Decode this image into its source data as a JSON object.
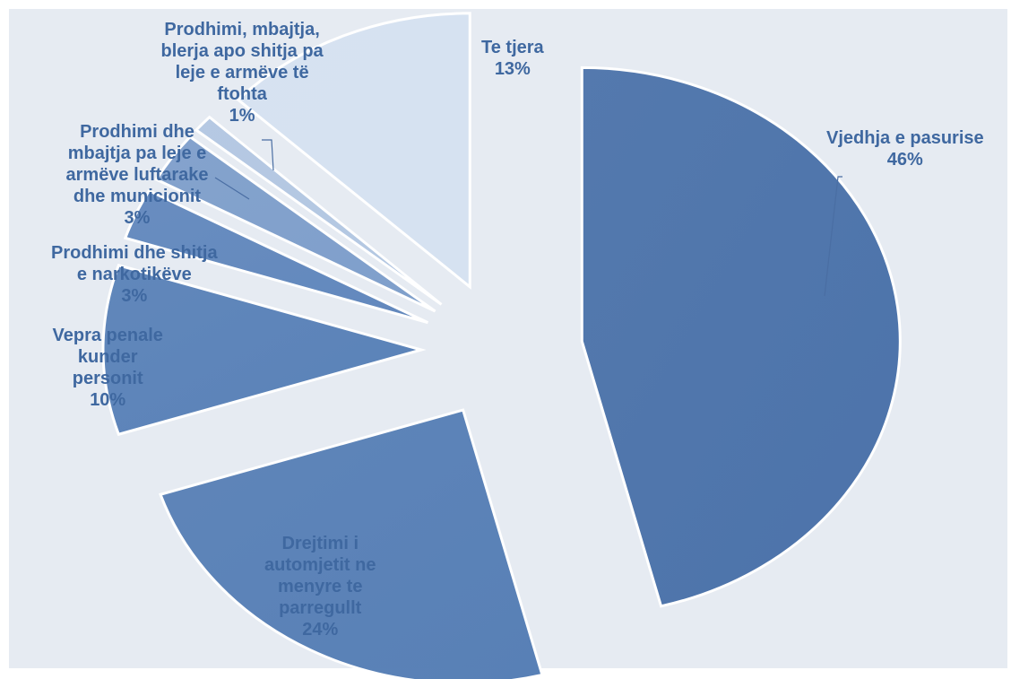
{
  "chart_data": {
    "type": "pie",
    "exploded": true,
    "slices": [
      {
        "lines": [
          "Vjedhja e pasurise",
          "46%"
        ],
        "value": 46,
        "color": "#4c73aa"
      },
      {
        "lines": [
          "Drejtimi i",
          "automjetit ne",
          "menyre te",
          "parregullt",
          "24%"
        ],
        "value": 24,
        "color": "#5880b6"
      },
      {
        "lines": [
          "Vepra penale",
          "kunder",
          "personit",
          "10%"
        ],
        "value": 10,
        "color": "#5a82b8"
      },
      {
        "lines": [
          "Prodhimi dhe shitja",
          "e narkotikëve",
          "3%"
        ],
        "value": 3,
        "color": "#6288bd"
      },
      {
        "lines": [
          "Prodhimi dhe",
          "mbajtja pa leje e",
          "armëve luftarake",
          "dhe municionit",
          "3%"
        ],
        "value": 3,
        "color": "#7f9fcb"
      },
      {
        "lines": [
          "Prodhimi, mbajtja,",
          "blerja apo shitja pa",
          "leje e armëve të",
          "ftohta",
          "1%"
        ],
        "value": 1,
        "color": "#b3c7e2"
      },
      {
        "lines": [
          "Te tjera",
          "13%"
        ],
        "value": 13,
        "color": "#d6e2f1"
      }
    ]
  }
}
